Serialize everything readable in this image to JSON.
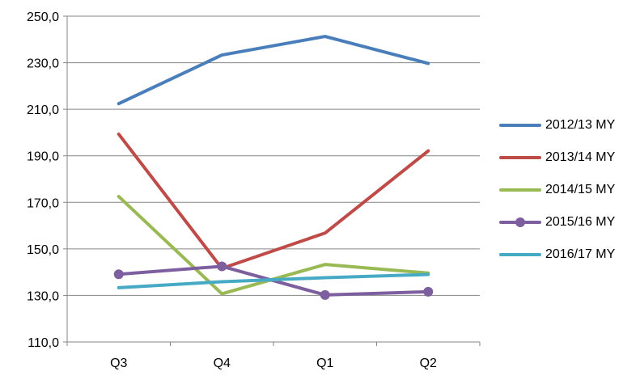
{
  "chart_data": {
    "type": "line",
    "categories": [
      "Q3",
      "Q4",
      "Q1",
      "Q2"
    ],
    "ylim": [
      110,
      250
    ],
    "yticks": [
      110,
      130,
      150,
      170,
      190,
      210,
      230,
      250
    ],
    "ytick_labels": [
      "110,0",
      "130,0",
      "150,0",
      "170,0",
      "190,0",
      "210,0",
      "230,0",
      "250,0"
    ],
    "grid": "horizontal",
    "legend_position": "right",
    "series": [
      {
        "name": "2012/13 MY",
        "color": "#4a7ebb",
        "marker": false,
        "values": [
          212.4,
          233.3,
          241.3,
          229.7
        ]
      },
      {
        "name": "2013/14 MY",
        "color": "#be4b48",
        "marker": false,
        "values": [
          199.3,
          141.6,
          156.8,
          192.1
        ]
      },
      {
        "name": "2014/15 MY",
        "color": "#98b954",
        "marker": false,
        "values": [
          172.5,
          130.7,
          143.3,
          139.6
        ]
      },
      {
        "name": "2015/16 MY",
        "color": "#7d5fa0",
        "marker": true,
        "values": [
          139.1,
          142.5,
          130.2,
          131.6
        ]
      },
      {
        "name": "2016/17 MY",
        "color": "#46aac5",
        "marker": false,
        "values": [
          133.3,
          135.9,
          137.6,
          139.0
        ]
      }
    ]
  }
}
